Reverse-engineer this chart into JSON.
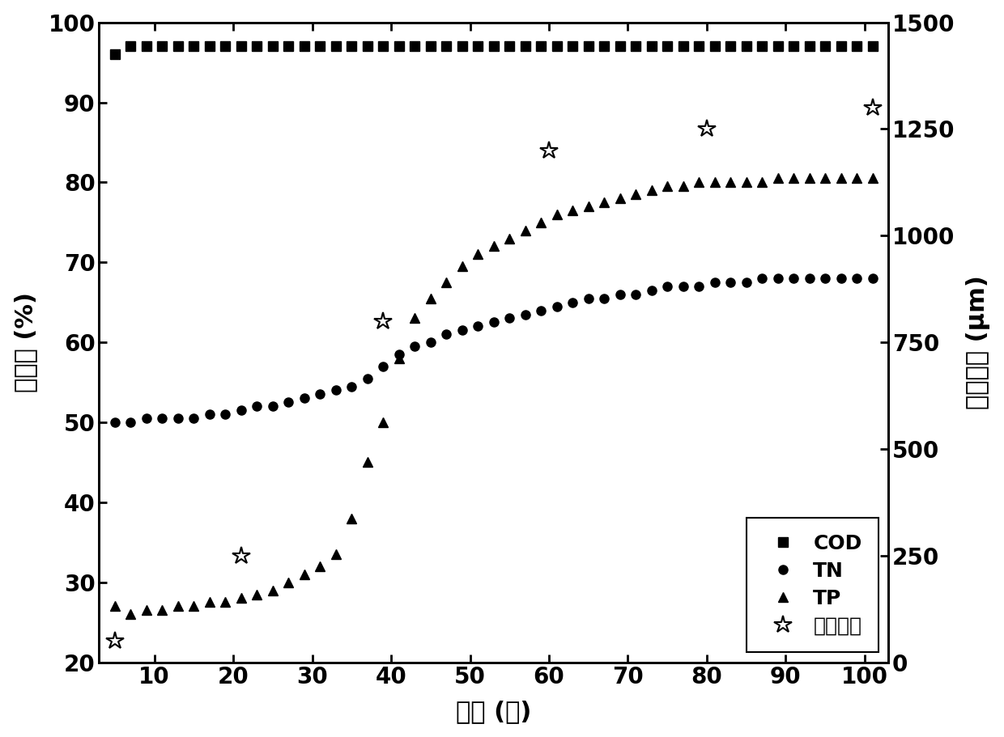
{
  "COD_x": [
    5,
    7,
    9,
    11,
    13,
    15,
    17,
    19,
    21,
    23,
    25,
    27,
    29,
    31,
    33,
    35,
    37,
    39,
    41,
    43,
    45,
    47,
    49,
    51,
    53,
    55,
    57,
    59,
    61,
    63,
    65,
    67,
    69,
    71,
    73,
    75,
    77,
    79,
    81,
    83,
    85,
    87,
    89,
    91,
    93,
    95,
    97,
    99,
    101
  ],
  "COD_y": [
    96,
    97,
    97,
    97,
    97,
    97,
    97,
    97,
    97,
    97,
    97,
    97,
    97,
    97,
    97,
    97,
    97,
    97,
    97,
    97,
    97,
    97,
    97,
    97,
    97,
    97,
    97,
    97,
    97,
    97,
    97,
    97,
    97,
    97,
    97,
    97,
    97,
    97,
    97,
    97,
    97,
    97,
    97,
    97,
    97,
    97,
    97,
    97,
    97
  ],
  "TN_x": [
    5,
    7,
    9,
    11,
    13,
    15,
    17,
    19,
    21,
    23,
    25,
    27,
    29,
    31,
    33,
    35,
    37,
    39,
    41,
    43,
    45,
    47,
    49,
    51,
    53,
    55,
    57,
    59,
    61,
    63,
    65,
    67,
    69,
    71,
    73,
    75,
    77,
    79,
    81,
    83,
    85,
    87,
    89,
    91,
    93,
    95,
    97,
    99,
    101
  ],
  "TN_y": [
    50,
    50,
    50.5,
    50.5,
    50.5,
    50.5,
    51,
    51,
    51.5,
    52,
    52,
    52.5,
    53,
    53.5,
    54,
    54.5,
    55.5,
    57,
    58.5,
    59.5,
    60,
    61,
    61.5,
    62,
    62.5,
    63,
    63.5,
    64,
    64.5,
    65,
    65.5,
    65.5,
    66,
    66,
    66.5,
    67,
    67,
    67,
    67.5,
    67.5,
    67.5,
    68,
    68,
    68,
    68,
    68,
    68,
    68,
    68
  ],
  "TP_x": [
    5,
    7,
    9,
    11,
    13,
    15,
    17,
    19,
    21,
    23,
    25,
    27,
    29,
    31,
    33,
    35,
    37,
    39,
    41,
    43,
    45,
    47,
    49,
    51,
    53,
    55,
    57,
    59,
    61,
    63,
    65,
    67,
    69,
    71,
    73,
    75,
    77,
    79,
    81,
    83,
    85,
    87,
    89,
    91,
    93,
    95,
    97,
    99,
    101
  ],
  "TP_y": [
    27,
    26,
    26.5,
    26.5,
    27,
    27,
    27.5,
    27.5,
    28,
    28.5,
    29,
    30,
    31,
    32,
    33.5,
    38,
    45,
    50,
    58,
    63,
    65.5,
    67.5,
    69.5,
    71,
    72,
    73,
    74,
    75,
    76,
    76.5,
    77,
    77.5,
    78,
    78.5,
    79,
    79.5,
    79.5,
    80,
    80,
    80,
    80,
    80,
    80.5,
    80.5,
    80.5,
    80.5,
    80.5,
    80.5,
    80.5
  ],
  "particle_x": [
    5,
    21,
    39,
    60,
    80,
    101
  ],
  "particle_y_right": [
    50,
    250,
    800,
    1200,
    1250,
    1300
  ],
  "xlim": [
    3,
    103
  ],
  "ylim_left": [
    20,
    100
  ],
  "ylim_right": [
    0,
    1500
  ],
  "xticks": [
    10,
    20,
    30,
    40,
    50,
    60,
    70,
    80,
    90,
    100
  ],
  "yticks_left": [
    20,
    30,
    40,
    50,
    60,
    70,
    80,
    90,
    100
  ],
  "yticks_right": [
    0,
    250,
    500,
    750,
    1000,
    1250,
    1500
  ],
  "xlabel": "时间 (天)",
  "ylabel_left": "去除率 (%)",
  "ylabel_right": "平均粒径 (μm)",
  "legend_labels": [
    "COD",
    "TN",
    "TP",
    "平均粒径"
  ],
  "color_black": "#000000",
  "background_color": "#ffffff"
}
